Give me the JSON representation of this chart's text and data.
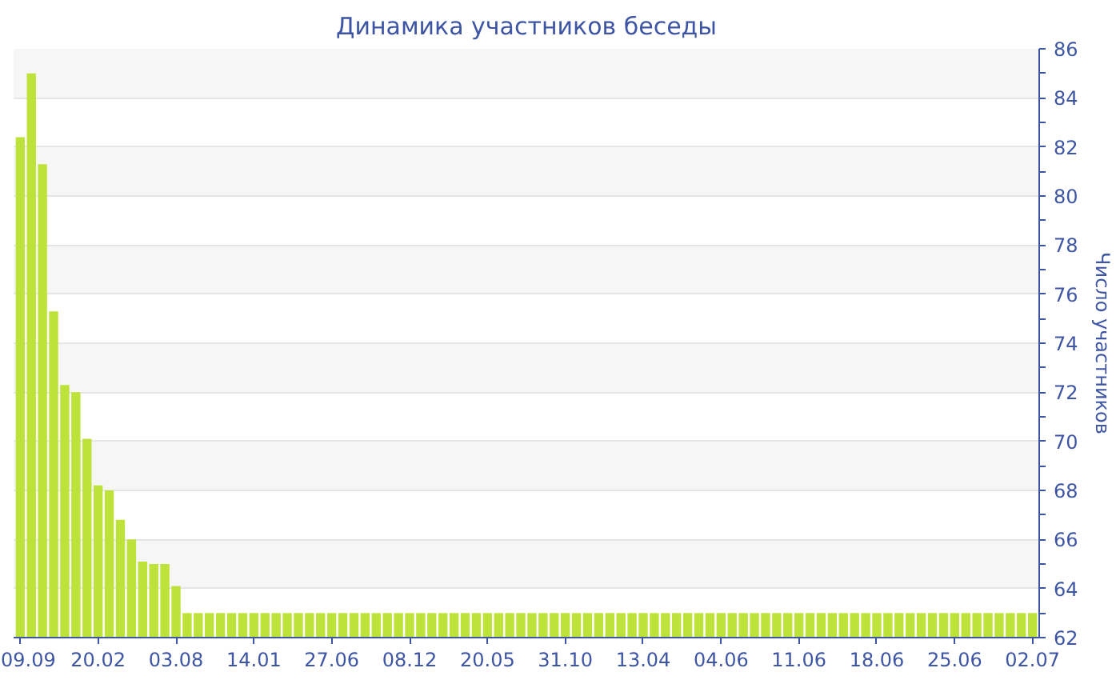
{
  "chart_data": {
    "type": "bar",
    "title": "Динамика участников беседы",
    "ylabel": "Число участников",
    "categories": [
      "09.09",
      null,
      null,
      null,
      null,
      null,
      null,
      "20.02",
      null,
      null,
      null,
      null,
      null,
      null,
      "03.08",
      null,
      null,
      null,
      null,
      null,
      null,
      "14.01",
      null,
      null,
      null,
      null,
      null,
      null,
      "27.06",
      null,
      null,
      null,
      null,
      null,
      null,
      "08.12",
      null,
      null,
      null,
      null,
      null,
      null,
      "20.05",
      null,
      null,
      null,
      null,
      null,
      null,
      "31.10",
      null,
      null,
      null,
      null,
      null,
      null,
      "13.04",
      null,
      null,
      null,
      null,
      null,
      null,
      "04.06",
      null,
      null,
      null,
      null,
      null,
      null,
      "11.06",
      null,
      null,
      null,
      null,
      null,
      null,
      "18.06",
      null,
      null,
      null,
      null,
      null,
      null,
      "25.06",
      null,
      null,
      null,
      null,
      null,
      null,
      "02.07"
    ],
    "values": [
      82.4,
      85,
      81.3,
      75.3,
      72.3,
      72,
      70.1,
      68.2,
      68,
      66.8,
      66,
      65.1,
      65,
      65,
      64.1,
      63,
      63,
      63,
      63,
      63,
      63,
      63,
      63,
      63,
      63,
      63,
      63,
      63,
      63,
      63,
      63,
      63,
      63,
      63,
      63,
      63,
      63,
      63,
      63,
      63,
      63,
      63,
      63,
      63,
      63,
      63,
      63,
      63,
      63,
      63,
      63,
      63,
      63,
      63,
      63,
      63,
      63,
      63,
      63,
      63,
      63,
      63,
      63,
      63,
      63,
      63,
      63,
      63,
      63,
      63,
      63,
      63,
      63,
      63,
      63,
      63,
      63,
      63,
      63,
      63,
      63,
      63,
      63,
      63,
      63,
      63,
      63,
      63,
      63,
      63,
      63,
      63
    ],
    "color": "#bde33a",
    "ylim": [
      62,
      86
    ],
    "yticks": [
      62,
      64,
      66,
      68,
      70,
      72,
      74,
      76,
      78,
      80,
      82,
      84,
      86
    ],
    "grid": "y"
  }
}
